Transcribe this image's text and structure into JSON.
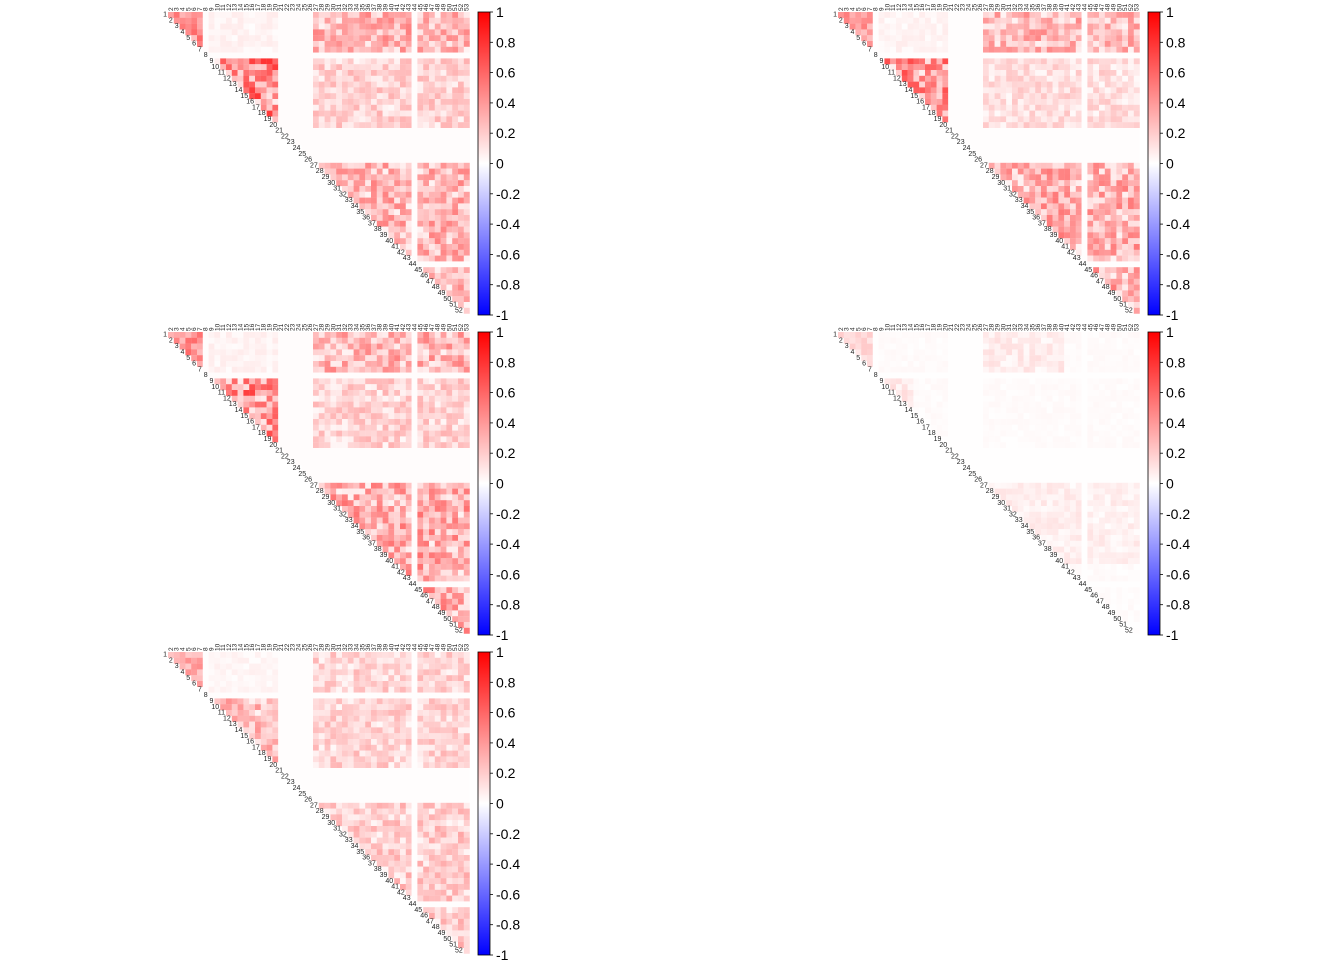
{
  "chart_data": {
    "type": "heatmap",
    "layout": "grid of 5 upper-triangular correlation heatmaps (3 rows x 2 columns; bottom-right empty)",
    "matrix_size": 53,
    "triangle": "upper",
    "diagonal_labels": [
      "1",
      "2",
      "3",
      "4",
      "5",
      "6",
      "7",
      "8",
      "9",
      "10",
      "11",
      "12",
      "13",
      "14",
      "15",
      "16",
      "17",
      "18",
      "19",
      "20",
      "21",
      "22",
      "23",
      "24",
      "25",
      "26",
      "27",
      "28",
      "29",
      "30",
      "31",
      "32",
      "33",
      "34",
      "35",
      "36",
      "37",
      "38",
      "39",
      "40",
      "41",
      "42",
      "43",
      "44",
      "45",
      "46",
      "47",
      "48",
      "49",
      "50",
      "51",
      "52"
    ],
    "top_labels": [
      "2",
      "3",
      "4",
      "5",
      "6",
      "7",
      "8",
      "9",
      "10",
      "11",
      "12",
      "13",
      "14",
      "15",
      "16",
      "17",
      "18",
      "19",
      "20",
      "21",
      "22",
      "23",
      "24",
      "25",
      "26",
      "27",
      "28",
      "29",
      "30",
      "31",
      "32",
      "33",
      "34",
      "35",
      "36",
      "37",
      "38",
      "39",
      "40",
      "41",
      "42",
      "43",
      "44",
      "45",
      "46",
      "47",
      "48",
      "49",
      "50",
      "51",
      "52",
      "53"
    ],
    "colorbar": {
      "min": -1,
      "max": 1,
      "colors": {
        "low": "#0000FF",
        "mid": "#FFFFFF",
        "high": "#FF0000"
      },
      "tick_labels": [
        "1",
        "0.8",
        "0.6",
        "0.4",
        "0.2",
        "0",
        "-0.2",
        "-0.4",
        "-0.6",
        "-0.8",
        "-1"
      ]
    },
    "grid": false,
    "panels": [
      {
        "position": "top-left",
        "intensity": 1.0,
        "seed": 11,
        "dead_vars": [
          8,
          21,
          22,
          23,
          24,
          25,
          26,
          44
        ],
        "blocks": [
          {
            "rows": [
              9,
              21
            ],
            "cols": [
              9,
              21
            ],
            "value": 0.65
          },
          {
            "rows": [
              1,
              7
            ],
            "cols": [
              27,
              53
            ],
            "value": 0.4
          },
          {
            "rows": [
              26,
              53
            ],
            "cols": [
              27,
              53
            ],
            "value": 0.4
          },
          {
            "rows": [
              8,
              21
            ],
            "cols": [
              27,
              53
            ],
            "value": 0.25
          }
        ]
      },
      {
        "position": "top-right",
        "intensity": 0.95,
        "seed": 23,
        "dead_vars": [
          8,
          21,
          22,
          23,
          24,
          25,
          26,
          44
        ],
        "blocks": [
          {
            "rows": [
              9,
              21
            ],
            "cols": [
              9,
              21
            ],
            "value": 0.6
          },
          {
            "rows": [
              1,
              7
            ],
            "cols": [
              27,
              53
            ],
            "value": 0.4
          },
          {
            "rows": [
              26,
              53
            ],
            "cols": [
              27,
              53
            ],
            "value": 0.45
          },
          {
            "rows": [
              8,
              21
            ],
            "cols": [
              27,
              53
            ],
            "value": 0.2
          }
        ]
      },
      {
        "position": "middle-left",
        "intensity": 1.0,
        "seed": 37,
        "dead_vars": [
          8,
          21,
          22,
          23,
          24,
          25,
          26,
          44
        ],
        "blocks": [
          {
            "rows": [
              9,
              21
            ],
            "cols": [
              9,
              21
            ],
            "value": 0.62
          },
          {
            "rows": [
              1,
              7
            ],
            "cols": [
              27,
              53
            ],
            "value": 0.4
          },
          {
            "rows": [
              26,
              53
            ],
            "cols": [
              27,
              53
            ],
            "value": 0.45
          },
          {
            "rows": [
              8,
              21
            ],
            "cols": [
              27,
              53
            ],
            "value": 0.25
          }
        ]
      },
      {
        "position": "middle-right",
        "intensity": 0.35,
        "seed": 41,
        "dead_vars": [
          8,
          21,
          22,
          23,
          24,
          25,
          26,
          44
        ],
        "blocks": [
          {
            "rows": [
              9,
              14
            ],
            "cols": [
              9,
              14
            ],
            "value": 0.35
          },
          {
            "rows": [
              1,
              7
            ],
            "cols": [
              27,
              40
            ],
            "value": 0.3
          },
          {
            "rows": [
              26,
              40
            ],
            "cols": [
              27,
              53
            ],
            "value": 0.25
          }
        ]
      },
      {
        "position": "bottom-left",
        "intensity": 0.8,
        "seed": 53,
        "dead_vars": [
          8,
          21,
          22,
          23,
          24,
          25,
          26,
          44
        ],
        "blocks": [
          {
            "rows": [
              9,
              21
            ],
            "cols": [
              9,
              21
            ],
            "value": 0.45
          },
          {
            "rows": [
              1,
              7
            ],
            "cols": [
              27,
              53
            ],
            "value": 0.3
          },
          {
            "rows": [
              26,
              53
            ],
            "cols": [
              27,
              53
            ],
            "value": 0.35
          },
          {
            "rows": [
              8,
              21
            ],
            "cols": [
              27,
              53
            ],
            "value": 0.3
          }
        ]
      }
    ]
  }
}
